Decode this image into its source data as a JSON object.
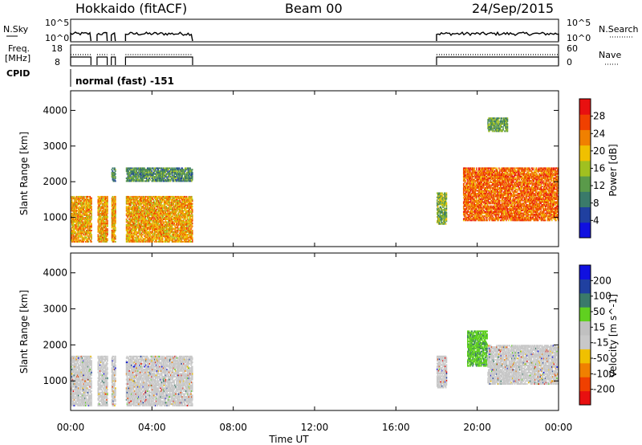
{
  "header": {
    "station": "Hokkaido (fitACF)",
    "beam": "Beam 00",
    "date": "24/Sep/2015"
  },
  "top_panels": {
    "nsky_label": "N.Sky",
    "nsky_ticks": [
      "10^5",
      "10^0"
    ],
    "nsearch_label": "N.Search",
    "nsearch_ticks": [
      "10^5",
      "10^0"
    ],
    "freq_label_1": "Freq.",
    "freq_label_2": "[MHz]",
    "freq_ticks": [
      "18",
      "8"
    ],
    "nave_label": "Nave",
    "nave_ticks": [
      "60",
      "0"
    ],
    "cpid_label": "CPID",
    "cpid_text": "normal (fast) -151"
  },
  "colors": {
    "power_scale": [
      "#1010e0",
      "#2040a0",
      "#3a7a6a",
      "#5a9a4a",
      "#a0c020",
      "#f0c000",
      "#f08000",
      "#f04000",
      "#e81010"
    ],
    "velocity_scale": [
      "#e81010",
      "#f04000",
      "#f08000",
      "#f0c000",
      "#c8c8c8",
      "#c0c0c0",
      "#60d020",
      "#3a7a6a",
      "#2040a0",
      "#1010e0"
    ]
  },
  "chart_data": [
    {
      "type": "heatmap",
      "title": "",
      "xlabel": "Time UT",
      "ylabel": "Slant Range [km]",
      "x_ticks": [
        "00:00",
        "04:00",
        "08:00",
        "12:00",
        "16:00",
        "20:00",
        "00:00"
      ],
      "x_range_hours": [
        0,
        24
      ],
      "y_ticks": [
        "1000",
        "2000",
        "3000",
        "4000"
      ],
      "y_range_km": [
        180,
        4550
      ],
      "colorbar": {
        "label": "Power [dB]",
        "ticks": [
          "4",
          "8",
          "12",
          "16",
          "20",
          "24",
          "28"
        ],
        "range": [
          0,
          32
        ]
      },
      "observed_intervals_hours": [
        [
          0,
          1.0
        ],
        [
          1.3,
          1.8
        ],
        [
          2.0,
          2.2
        ],
        [
          2.7,
          6.0
        ],
        [
          18.0,
          24.0
        ]
      ],
      "echo_regions": [
        {
          "t_start": 0.0,
          "t_end": 6.0,
          "range_min_km": 300,
          "range_max_km": 1600,
          "power_db": 22
        },
        {
          "t_start": 18.0,
          "t_end": 18.5,
          "range_min_km": 800,
          "range_max_km": 1700,
          "power_db": 14
        },
        {
          "t_start": 19.3,
          "t_end": 24.0,
          "range_min_km": 900,
          "range_max_km": 2400,
          "power_db": 26
        },
        {
          "t_start": 2.0,
          "t_end": 6.0,
          "range_min_km": 2000,
          "range_max_km": 2400,
          "power_db": 10
        },
        {
          "t_start": 20.5,
          "t_end": 21.5,
          "range_min_km": 3400,
          "range_max_km": 3800,
          "power_db": 12
        }
      ]
    },
    {
      "type": "heatmap",
      "title": "",
      "xlabel": "Time UT",
      "ylabel": "Slant Range [km]",
      "x_ticks": [
        "00:00",
        "04:00",
        "08:00",
        "12:00",
        "16:00",
        "20:00",
        "00:00"
      ],
      "x_range_hours": [
        0,
        24
      ],
      "y_ticks": [
        "1000",
        "2000",
        "3000",
        "4000"
      ],
      "y_range_km": [
        180,
        4550
      ],
      "colorbar": {
        "label": "Velocity [m s^-1]",
        "ticks": [
          "-200",
          "-100",
          "-50",
          "-15",
          "15",
          "50",
          "100",
          "200"
        ],
        "range": [
          -250,
          250
        ]
      },
      "echo_regions": [
        {
          "t_start": 0.0,
          "t_end": 6.0,
          "range_min_km": 300,
          "range_max_km": 1700,
          "velocity_ms": 0
        },
        {
          "t_start": 19.5,
          "t_end": 20.5,
          "range_min_km": 1400,
          "range_max_km": 2400,
          "velocity_ms": 30
        },
        {
          "t_start": 20.5,
          "t_end": 24.0,
          "range_min_km": 900,
          "range_max_km": 2000,
          "velocity_ms": 0
        },
        {
          "t_start": 18.0,
          "t_end": 18.5,
          "range_min_km": 800,
          "range_max_km": 1700,
          "velocity_ms": 0
        }
      ]
    }
  ]
}
